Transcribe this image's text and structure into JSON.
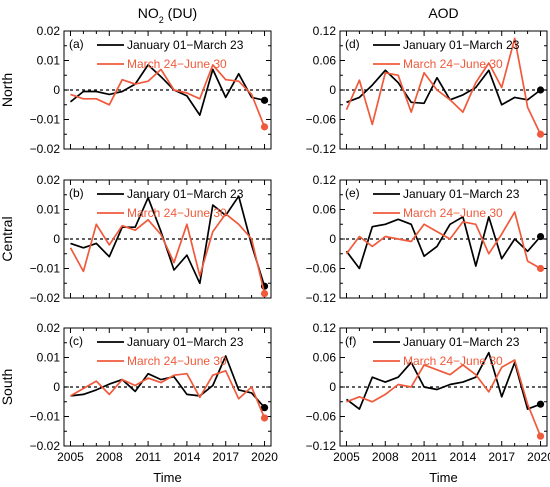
{
  "figure": {
    "column_titles": [
      "NO<sub>2</sub> (DU)",
      "AOD"
    ],
    "column_title_parts": [
      {
        "main": "NO",
        "sub": "2",
        "rest": " (DU)"
      },
      {
        "main": "AOD",
        "sub": "",
        "rest": ""
      }
    ],
    "row_labels": [
      "North",
      "Central",
      "South"
    ],
    "xlabel": "Time",
    "colors": {
      "jan_mar": "#000000",
      "mar_jun": "#f05a3c",
      "zero_line": "#000000"
    }
  },
  "chart_data": [
    {
      "type": "line",
      "panel": "(a)",
      "row": "North",
      "column": "NO2 (DU)",
      "x": [
        2005,
        2006,
        2007,
        2008,
        2009,
        2010,
        2011,
        2012,
        2013,
        2014,
        2015,
        2016,
        2017,
        2018,
        2019,
        2020
      ],
      "xticks": [
        2005,
        2008,
        2011,
        2014,
        2017,
        2020
      ],
      "ylim": [
        -0.02,
        0.02
      ],
      "yticks": [
        -0.02,
        -0.01,
        0,
        0.01,
        0.02
      ],
      "ytick_labels": [
        "−0.02",
        "−0.01",
        "0",
        "0.01",
        "0.02"
      ],
      "series": [
        {
          "name": "January 01−March 23",
          "color": "#000000",
          "values": [
            -0.004,
            -0.0005,
            -0.0005,
            -0.0015,
            -0.0005,
            0.002,
            0.0085,
            0.0045,
            0.0,
            -0.002,
            -0.0085,
            0.007,
            -0.0025,
            0.0055,
            -0.0025,
            -0.0035
          ]
        },
        {
          "name": "March 24−June 30",
          "color": "#f05a3c",
          "values": [
            -0.0015,
            -0.003,
            -0.003,
            -0.005,
            0.0035,
            0.002,
            0.003,
            0.007,
            0.0,
            -0.001,
            -0.003,
            0.0085,
            0.0035,
            0.003,
            -0.0015,
            -0.0125
          ]
        }
      ],
      "legend_location": "upper"
    },
    {
      "type": "line",
      "panel": "(b)",
      "row": "Central",
      "column": "NO2 (DU)",
      "x": [
        2005,
        2006,
        2007,
        2008,
        2009,
        2010,
        2011,
        2012,
        2013,
        2014,
        2015,
        2016,
        2017,
        2018,
        2019,
        2020
      ],
      "xticks": [
        2005,
        2008,
        2011,
        2014,
        2017,
        2020
      ],
      "ylim": [
        -0.02,
        0.02
      ],
      "yticks": [
        -0.02,
        -0.01,
        0,
        0.01,
        0.02
      ],
      "ytick_labels": [
        "−0.02",
        "−0.01",
        "0",
        "0.01",
        "0.02"
      ],
      "series": [
        {
          "name": "January 01−March 23",
          "color": "#000000",
          "values": [
            -0.0015,
            -0.003,
            -0.0015,
            -0.006,
            0.004,
            0.004,
            0.014,
            0.0025,
            -0.0105,
            -0.0055,
            -0.015,
            0.0115,
            0.008,
            0.0145,
            -0.002,
            -0.016
          ]
        },
        {
          "name": "March 24−June 30",
          "color": "#f05a3c",
          "values": [
            -0.003,
            -0.011,
            0.005,
            -0.002,
            0.0045,
            0.003,
            0.0065,
            0.0015,
            -0.008,
            0.005,
            -0.0125,
            0.0025,
            0.0085,
            0.005,
            0.0,
            -0.0185
          ]
        }
      ],
      "legend_location": "upper"
    },
    {
      "type": "line",
      "panel": "(c)",
      "row": "South",
      "column": "NO2 (DU)",
      "x": [
        2005,
        2006,
        2007,
        2008,
        2009,
        2010,
        2011,
        2012,
        2013,
        2014,
        2015,
        2016,
        2017,
        2018,
        2019,
        2020
      ],
      "xticks": [
        2005,
        2008,
        2011,
        2014,
        2017,
        2020
      ],
      "ylim": [
        -0.02,
        0.02
      ],
      "yticks": [
        -0.02,
        -0.01,
        0,
        0.01,
        0.02
      ],
      "ytick_labels": [
        "−0.02",
        "−0.01",
        "0",
        "0.01",
        "0.02"
      ],
      "series": [
        {
          "name": "January 01−March 23",
          "color": "#000000",
          "values": [
            -0.003,
            -0.0025,
            -0.001,
            0.001,
            0.0025,
            -0.0015,
            0.0045,
            0.0025,
            0.0035,
            -0.0025,
            -0.003,
            0.0005,
            0.0105,
            -0.001,
            -0.002,
            -0.007
          ]
        },
        {
          "name": "March 24−June 30",
          "color": "#f05a3c",
          "values": [
            -0.003,
            -0.0005,
            0.002,
            -0.0025,
            0.0025,
            0.0005,
            0.003,
            0.0015,
            0.004,
            0.0045,
            -0.0035,
            0.004,
            0.0055,
            -0.004,
            0.0,
            -0.0105
          ]
        }
      ],
      "legend_location": "upper"
    },
    {
      "type": "line",
      "panel": "(d)",
      "row": "North",
      "column": "AOD",
      "x": [
        2005,
        2006,
        2007,
        2008,
        2009,
        2010,
        2011,
        2012,
        2013,
        2014,
        2015,
        2016,
        2017,
        2018,
        2019,
        2020
      ],
      "xticks": [
        2005,
        2008,
        2011,
        2014,
        2017,
        2020
      ],
      "ylim": [
        -0.12,
        0.12
      ],
      "yticks": [
        -0.12,
        -0.06,
        0,
        0.06,
        0.12
      ],
      "ytick_labels": [
        "−0.12",
        "−0.06",
        "0",
        "0.06",
        "0.12"
      ],
      "series": [
        {
          "name": "January 01−March 23",
          "color": "#000000",
          "values": [
            -0.025,
            -0.015,
            0.01,
            0.04,
            0.015,
            -0.025,
            -0.027,
            0.025,
            -0.02,
            -0.01,
            0.005,
            0.04,
            -0.03,
            -0.015,
            -0.02,
            0.0
          ]
        },
        {
          "name": "March 24−June 30",
          "color": "#f05a3c",
          "values": [
            -0.04,
            0.02,
            -0.07,
            0.035,
            0.03,
            -0.045,
            0.035,
            0.0,
            -0.02,
            -0.045,
            0.015,
            0.055,
            0.005,
            0.105,
            -0.035,
            -0.09
          ]
        }
      ],
      "legend_location": "upper"
    },
    {
      "type": "line",
      "panel": "(e)",
      "row": "Central",
      "column": "AOD",
      "x": [
        2005,
        2006,
        2007,
        2008,
        2009,
        2010,
        2011,
        2012,
        2013,
        2014,
        2015,
        2016,
        2017,
        2018,
        2019,
        2020
      ],
      "xticks": [
        2005,
        2008,
        2011,
        2014,
        2017,
        2020
      ],
      "ylim": [
        -0.12,
        0.12
      ],
      "yticks": [
        -0.12,
        -0.06,
        0,
        0.06,
        0.12
      ],
      "ytick_labels": [
        "−0.12",
        "−0.06",
        "0",
        "0.06",
        "0.12"
      ],
      "series": [
        {
          "name": "January 01−March 23",
          "color": "#000000",
          "values": [
            -0.025,
            -0.06,
            0.025,
            0.03,
            0.04,
            0.03,
            -0.035,
            -0.015,
            0.03,
            0.045,
            -0.055,
            0.045,
            -0.04,
            0.0,
            -0.025,
            0.005
          ]
        },
        {
          "name": "March 24−June 30",
          "color": "#f05a3c",
          "values": [
            -0.03,
            0.005,
            -0.015,
            0.005,
            0.0,
            -0.005,
            0.03,
            0.015,
            0.0,
            0.035,
            0.03,
            -0.03,
            0.01,
            0.055,
            -0.045,
            -0.06
          ]
        }
      ],
      "legend_location": "upper"
    },
    {
      "type": "line",
      "panel": "(f)",
      "row": "South",
      "column": "AOD",
      "x": [
        2005,
        2006,
        2007,
        2008,
        2009,
        2010,
        2011,
        2012,
        2013,
        2014,
        2015,
        2016,
        2017,
        2018,
        2019,
        2020
      ],
      "xticks": [
        2005,
        2008,
        2011,
        2014,
        2017,
        2020
      ],
      "ylim": [
        -0.12,
        0.12
      ],
      "yticks": [
        -0.12,
        -0.06,
        0,
        0.06,
        0.12
      ],
      "ytick_labels": [
        "−0.12",
        "−0.06",
        "0",
        "0.06",
        "0.12"
      ],
      "series": [
        {
          "name": "January 01−March 23",
          "color": "#000000",
          "values": [
            -0.025,
            -0.045,
            0.02,
            0.01,
            0.02,
            0.05,
            0.0,
            -0.005,
            0.005,
            0.01,
            0.02,
            0.07,
            -0.02,
            0.05,
            -0.045,
            -0.035
          ]
        },
        {
          "name": "March 24−June 30",
          "color": "#f05a3c",
          "values": [
            -0.03,
            -0.02,
            -0.03,
            -0.015,
            0.005,
            0.0,
            0.045,
            0.035,
            0.025,
            0.045,
            0.025,
            -0.01,
            0.04,
            0.055,
            -0.035,
            -0.1
          ]
        }
      ],
      "legend_location": "upper"
    }
  ]
}
